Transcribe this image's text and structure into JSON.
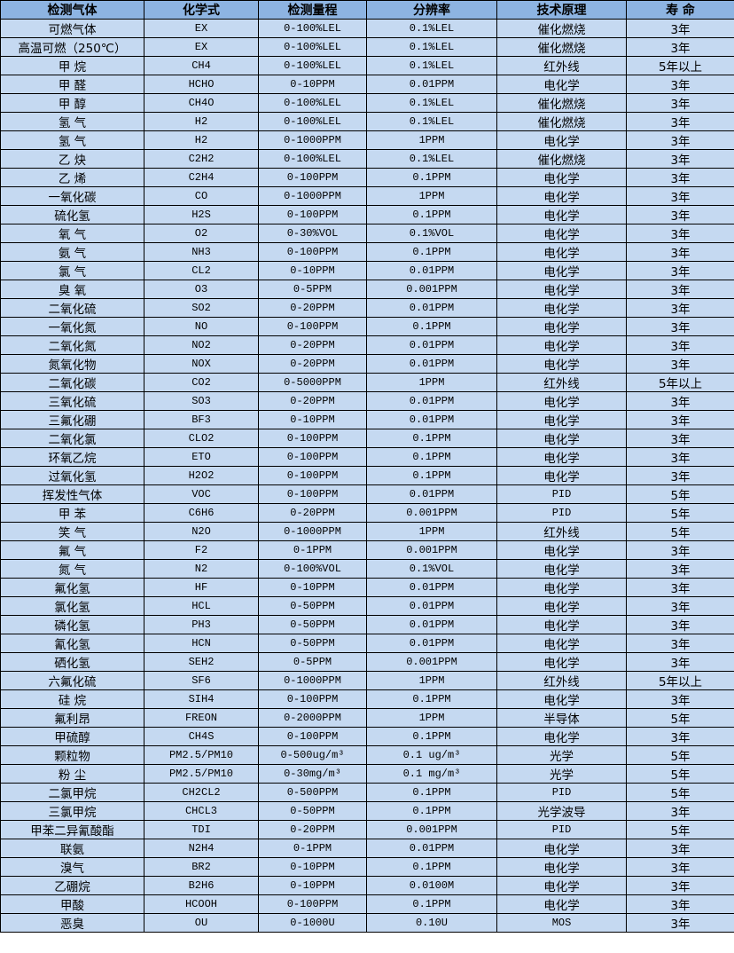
{
  "colors": {
    "header_bg": "#8db4e2",
    "row_bg": "#c5d9f1",
    "border": "#000000"
  },
  "headers": [
    "检测气体",
    "化学式",
    "检测量程",
    "分辨率",
    "技术原理",
    "寿 命"
  ],
  "rows": [
    [
      "可燃气体",
      "EX",
      "0-100%LEL",
      "0.1%LEL",
      "催化燃烧",
      "3年"
    ],
    [
      "高温可燃（250℃）",
      "EX",
      "0-100%LEL",
      "0.1%LEL",
      "催化燃烧",
      "3年"
    ],
    [
      "甲 烷",
      "CH4",
      "0-100%LEL",
      "0.1%LEL",
      "红外线",
      "5年以上"
    ],
    [
      "甲 醛",
      "HCHO",
      "0-10PPM",
      "0.01PPM",
      "电化学",
      "3年"
    ],
    [
      "甲 醇",
      "CH4O",
      "0-100%LEL",
      "0.1%LEL",
      "催化燃烧",
      "3年"
    ],
    [
      "氢 气",
      "H2",
      "0-100%LEL",
      "0.1%LEL",
      "催化燃烧",
      "3年"
    ],
    [
      "氢 气",
      "H2",
      "0-1000PPM",
      "1PPM",
      "电化学",
      "3年"
    ],
    [
      "乙 炔",
      "C2H2",
      "0-100%LEL",
      "0.1%LEL",
      "催化燃烧",
      "3年"
    ],
    [
      "乙 烯",
      "C2H4",
      "0-100PPM",
      "0.1PPM",
      "电化学",
      "3年"
    ],
    [
      "一氧化碳",
      "CO",
      "0-1000PPM",
      "1PPM",
      "电化学",
      "3年"
    ],
    [
      "硫化氢",
      "H2S",
      "0-100PPM",
      "0.1PPM",
      "电化学",
      "3年"
    ],
    [
      "氧 气",
      "O2",
      "0-30%VOL",
      "0.1%VOL",
      "电化学",
      "3年"
    ],
    [
      "氨 气",
      "NH3",
      "0-100PPM",
      "0.1PPM",
      "电化学",
      "3年"
    ],
    [
      "氯 气",
      "CL2",
      "0-10PPM",
      "0.01PPM",
      "电化学",
      "3年"
    ],
    [
      "臭 氧",
      "O3",
      "0-5PPM",
      "0.001PPM",
      "电化学",
      "3年"
    ],
    [
      "二氧化硫",
      "SO2",
      "0-20PPM",
      "0.01PPM",
      "电化学",
      "3年"
    ],
    [
      "一氧化氮",
      "NO",
      "0-100PPM",
      "0.1PPM",
      "电化学",
      "3年"
    ],
    [
      "二氧化氮",
      "NO2",
      "0-20PPM",
      "0.01PPM",
      "电化学",
      "3年"
    ],
    [
      "氮氧化物",
      "NOX",
      "0-20PPM",
      "0.01PPM",
      "电化学",
      "3年"
    ],
    [
      "二氧化碳",
      "CO2",
      "0-5000PPM",
      "1PPM",
      "红外线",
      "5年以上"
    ],
    [
      "三氧化硫",
      "SO3",
      "0-20PPM",
      "0.01PPM",
      "电化学",
      "3年"
    ],
    [
      "三氟化硼",
      "BF3",
      "0-10PPM",
      "0.01PPM",
      "电化学",
      "3年"
    ],
    [
      "二氧化氯",
      "CLO2",
      "0-100PPM",
      "0.1PPM",
      "电化学",
      "3年"
    ],
    [
      "环氧乙烷",
      "ETO",
      "0-100PPM",
      "0.1PPM",
      "电化学",
      "3年"
    ],
    [
      "过氧化氢",
      "H2O2",
      "0-100PPM",
      "0.1PPM",
      "电化学",
      "3年"
    ],
    [
      "挥发性气体",
      "VOC",
      "0-100PPM",
      "0.01PPM",
      "PID",
      "5年"
    ],
    [
      "甲 苯",
      "C6H6",
      "0-20PPM",
      "0.001PPM",
      "PID",
      "5年"
    ],
    [
      "笑 气",
      "N2O",
      "0-1000PPM",
      "1PPM",
      "红外线",
      "5年"
    ],
    [
      "氟 气",
      "F2",
      "0-1PPM",
      "0.001PPM",
      "电化学",
      "3年"
    ],
    [
      "氮 气",
      "N2",
      "0-100%VOL",
      "0.1%VOL",
      "电化学",
      "3年"
    ],
    [
      "氟化氢",
      "HF",
      "0-10PPM",
      "0.01PPM",
      "电化学",
      "3年"
    ],
    [
      "氯化氢",
      "HCL",
      "0-50PPM",
      "0.01PPM",
      "电化学",
      "3年"
    ],
    [
      "磷化氢",
      "PH3",
      "0-50PPM",
      "0.01PPM",
      "电化学",
      "3年"
    ],
    [
      "氰化氢",
      "HCN",
      "0-50PPM",
      "0.01PPM",
      "电化学",
      "3年"
    ],
    [
      "硒化氢",
      "SEH2",
      "0-5PPM",
      "0.001PPM",
      "电化学",
      "3年"
    ],
    [
      "六氟化硫",
      "SF6",
      "0-1000PPM",
      "1PPM",
      "红外线",
      "5年以上"
    ],
    [
      "硅 烷",
      "SIH4",
      "0-100PPM",
      "0.1PPM",
      "电化学",
      "3年"
    ],
    [
      "氟利昂",
      "FREON",
      "0-2000PPM",
      "1PPM",
      "半导体",
      "5年"
    ],
    [
      "甲硫醇",
      "CH4S",
      "0-100PPM",
      "0.1PPM",
      "电化学",
      "3年"
    ],
    [
      "颗粒物",
      "PM2.5/PM10",
      "0-500ug/m³",
      "0.1 ug/m³",
      "光学",
      "5年"
    ],
    [
      "粉 尘",
      "PM2.5/PM10",
      "0-30mg/m³",
      "0.1 mg/m³",
      "光学",
      "5年"
    ],
    [
      "二氯甲烷",
      "CH2CL2",
      "0-500PPM",
      "0.1PPM",
      "PID",
      "5年"
    ],
    [
      "三氯甲烷",
      "CHCL3",
      "0-50PPM",
      "0.1PPM",
      "光学波导",
      "3年"
    ],
    [
      "甲苯二异氰酸酯",
      "TDI",
      "0-20PPM",
      "0.001PPM",
      "PID",
      "5年"
    ],
    [
      "联氨",
      "N2H4",
      "0-1PPM",
      "0.01PPM",
      "电化学",
      "3年"
    ],
    [
      "溴气",
      "BR2",
      "0-10PPM",
      "0.1PPM",
      "电化学",
      "3年"
    ],
    [
      "乙硼烷",
      "B2H6",
      "0-10PPM",
      "0.0100M",
      "电化学",
      "3年"
    ],
    [
      "甲酸",
      "HCOOH",
      "0-100PPM",
      "0.1PPM",
      "电化学",
      "3年"
    ],
    [
      "恶臭",
      "OU",
      "0-1000U",
      "0.10U",
      "MOS",
      "3年"
    ]
  ]
}
